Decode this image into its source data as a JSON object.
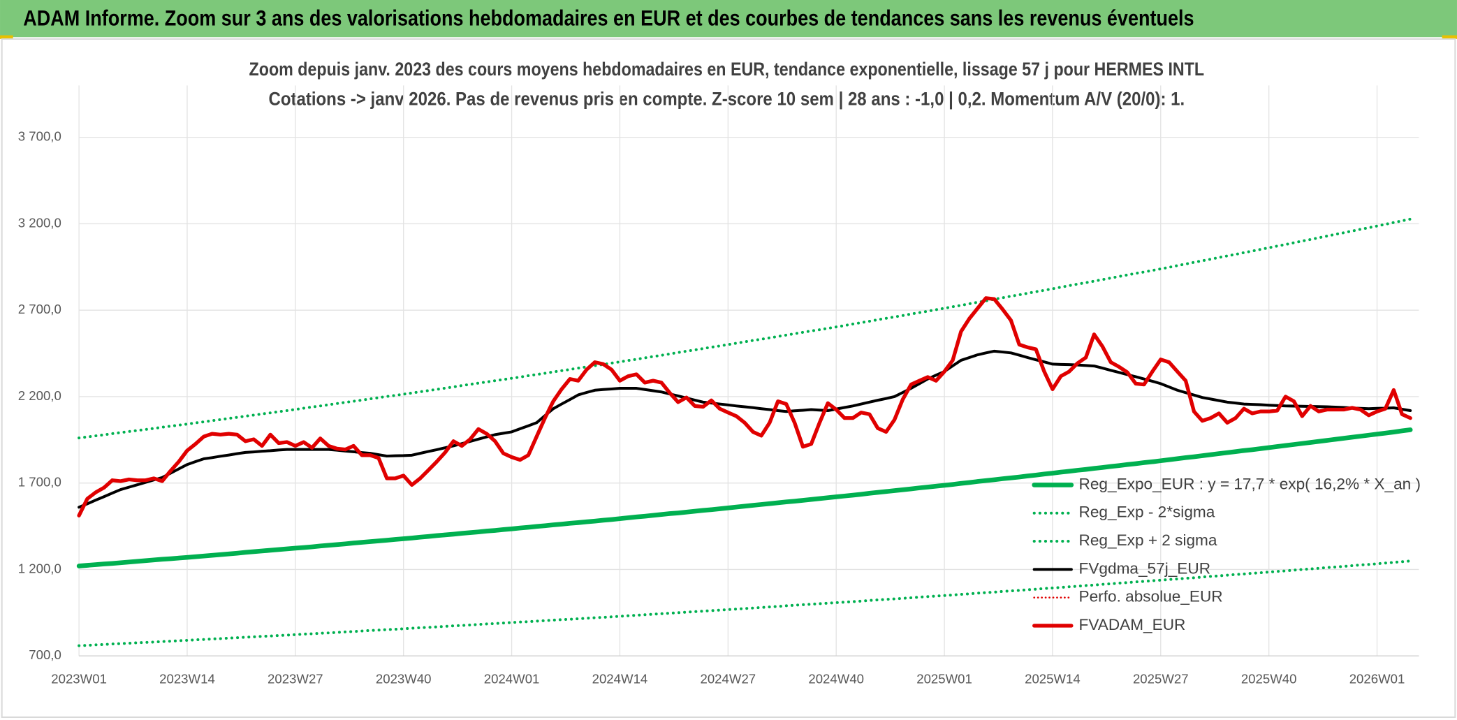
{
  "header": {
    "title": "ADAM Informe. Zoom sur 3 ans des valorisations hebdomadaires en EUR et des courbes de tendances sans les revenus éventuels"
  },
  "chart_data": {
    "type": "line",
    "title": "Zoom depuis janv. 2023 des cours moyens hebdomadaires en EUR, tendance exponentielle, lissage 57 j pour HERMES INTL",
    "subtitle": "Cotations -> janv 2026. Pas de revenus pris en compte. Z-score 10 sem | 28 ans : -1,0 | 0,2. Momentum A/V (20/0): 1.",
    "categories": [
      "2023W01",
      null,
      null,
      null,
      null,
      null,
      null,
      null,
      null,
      null,
      null,
      null,
      null,
      "2023W14",
      null,
      null,
      null,
      null,
      null,
      null,
      null,
      null,
      null,
      null,
      null,
      null,
      "2023W27",
      null,
      null,
      null,
      null,
      null,
      null,
      null,
      null,
      null,
      null,
      null,
      null,
      "2023W40",
      null,
      null,
      null,
      null,
      null,
      null,
      null,
      null,
      null,
      null,
      null,
      null,
      "2024W01",
      null,
      null,
      null,
      null,
      null,
      null,
      null,
      null,
      null,
      null,
      null,
      null,
      "2024W14",
      null,
      null,
      null,
      null,
      null,
      null,
      null,
      null,
      null,
      null,
      null,
      null,
      "2024W27",
      null,
      null,
      null,
      null,
      null,
      null,
      null,
      null,
      null,
      null,
      null,
      null,
      "2024W40",
      null,
      null,
      null,
      null,
      null,
      null,
      null,
      null,
      null,
      null,
      null,
      null,
      "2025W01",
      null,
      null,
      null,
      null,
      null,
      null,
      null,
      null,
      null,
      null,
      null,
      null,
      "2025W14",
      null,
      null,
      null,
      null,
      null,
      null,
      null,
      null,
      null,
      null,
      null,
      null,
      "2025W27",
      null,
      null,
      null,
      null,
      null,
      null,
      null,
      null,
      null,
      null,
      null,
      null,
      "2025W40",
      null,
      null,
      null,
      null,
      null,
      null,
      null,
      null,
      null,
      null,
      null,
      null,
      "2026W01",
      null,
      null,
      null,
      null
    ],
    "ylim": [
      700,
      4000
    ],
    "yticks": [
      {
        "value": 700,
        "label": "700,0"
      },
      {
        "value": 1200,
        "label": "1 200,0"
      },
      {
        "value": 1700,
        "label": "1 700,0"
      },
      {
        "value": 2200,
        "label": "2 200,0"
      },
      {
        "value": 2700,
        "label": "2 700,0"
      },
      {
        "value": 3200,
        "label": "3 200,0"
      },
      {
        "value": 3700,
        "label": "3 700,0"
      }
    ],
    "grid": true,
    "legend": "lower right",
    "series": [
      {
        "name": "Reg_Expo_EUR : y = 17,7 * exp( 16,2% *  X_an )",
        "color": "#00b050",
        "style": "solid",
        "width": 5,
        "values": [
          1220,
          1224,
          1228,
          1232,
          1235,
          1239,
          1243,
          1247,
          1251,
          1255,
          1259,
          1262,
          1266,
          1270,
          1274,
          1278,
          1282,
          1286,
          1290,
          1294,
          1299,
          1303,
          1307,
          1311,
          1315,
          1319,
          1323,
          1327,
          1331,
          1336,
          1340,
          1344,
          1348,
          1353,
          1357,
          1361,
          1365,
          1369,
          1374,
          1378,
          1382,
          1387,
          1391,
          1396,
          1400,
          1404,
          1409,
          1413,
          1417,
          1422,
          1426,
          1431,
          1435,
          1440,
          1444,
          1449,
          1453,
          1458,
          1462,
          1467,
          1471,
          1476,
          1480,
          1485,
          1489,
          1494,
          1499,
          1504,
          1508,
          1513,
          1518,
          1523,
          1527,
          1532,
          1537,
          1542,
          1546,
          1551,
          1556,
          1561,
          1566,
          1571,
          1576,
          1581,
          1586,
          1591,
          1595,
          1600,
          1605,
          1610,
          1615,
          1620,
          1625,
          1630,
          1635,
          1641,
          1646,
          1651,
          1656,
          1661,
          1666,
          1672,
          1677,
          1682,
          1687,
          1692,
          1698,
          1703,
          1709,
          1714,
          1719,
          1725,
          1730,
          1735,
          1741,
          1746,
          1752,
          1757,
          1763,
          1768,
          1774,
          1779,
          1785,
          1790,
          1796,
          1801,
          1807,
          1812,
          1818,
          1823,
          1829,
          1835,
          1841,
          1847,
          1852,
          1858,
          1864,
          1870,
          1876,
          1882,
          1888,
          1893,
          1899,
          1905,
          1911,
          1917,
          1923,
          1929,
          1935,
          1941,
          1947,
          1953,
          1959,
          1965,
          1971,
          1977,
          1983,
          1989,
          1995,
          2002,
          2008
        ]
      },
      {
        "name": "Reg_Exp - 2*sigma",
        "color": "#00b050",
        "style": "dotted",
        "width": 3,
        "values": [
          759,
          761,
          764,
          766,
          769,
          771,
          773,
          776,
          778,
          780,
          783,
          785,
          788,
          790,
          793,
          795,
          798,
          800,
          803,
          805,
          808,
          810,
          813,
          815,
          818,
          820,
          823,
          826,
          828,
          831,
          833,
          836,
          839,
          841,
          844,
          847,
          849,
          852,
          854,
          857,
          860,
          863,
          865,
          868,
          871,
          874,
          876,
          879,
          882,
          885,
          887,
          890,
          893,
          896,
          898,
          901,
          904,
          907,
          910,
          912,
          915,
          918,
          921,
          923,
          926,
          929,
          932,
          935,
          938,
          941,
          944,
          947,
          950,
          953,
          956,
          959,
          962,
          965,
          968,
          971,
          974,
          977,
          980,
          983,
          986,
          990,
          993,
          996,
          999,
          1002,
          1005,
          1008,
          1011,
          1014,
          1017,
          1021,
          1024,
          1027,
          1030,
          1033,
          1036,
          1040,
          1043,
          1046,
          1049,
          1052,
          1056,
          1059,
          1063,
          1066,
          1069,
          1073,
          1076,
          1079,
          1083,
          1086,
          1090,
          1093,
          1096,
          1100,
          1103,
          1107,
          1110,
          1114,
          1117,
          1121,
          1124,
          1128,
          1131,
          1135,
          1138,
          1142,
          1145,
          1149,
          1152,
          1156,
          1160,
          1163,
          1167,
          1171,
          1174,
          1178,
          1181,
          1185,
          1189,
          1192,
          1196,
          1200,
          1203,
          1207,
          1211,
          1214,
          1218,
          1222,
          1226,
          1229,
          1233,
          1237,
          1241,
          1245,
          1249
        ]
      },
      {
        "name": "Reg_Exp + 2 sigma",
        "color": "#00b050",
        "style": "dotted",
        "width": 3,
        "values": [
          1961,
          1967,
          1973,
          1979,
          1986,
          1992,
          1998,
          2004,
          2010,
          2016,
          2023,
          2029,
          2035,
          2041,
          2048,
          2054,
          2061,
          2067,
          2074,
          2080,
          2087,
          2093,
          2100,
          2106,
          2113,
          2119,
          2126,
          2133,
          2140,
          2146,
          2153,
          2160,
          2167,
          2173,
          2180,
          2187,
          2194,
          2201,
          2207,
          2214,
          2221,
          2228,
          2235,
          2242,
          2249,
          2256,
          2264,
          2271,
          2278,
          2285,
          2292,
          2299,
          2306,
          2313,
          2321,
          2328,
          2335,
          2343,
          2350,
          2357,
          2365,
          2372,
          2379,
          2386,
          2394,
          2401,
          2409,
          2416,
          2424,
          2432,
          2439,
          2447,
          2455,
          2463,
          2470,
          2478,
          2486,
          2493,
          2501,
          2509,
          2517,
          2525,
          2532,
          2540,
          2548,
          2556,
          2564,
          2572,
          2580,
          2587,
          2595,
          2603,
          2611,
          2620,
          2628,
          2636,
          2645,
          2653,
          2661,
          2669,
          2678,
          2686,
          2694,
          2703,
          2711,
          2720,
          2728,
          2737,
          2746,
          2754,
          2763,
          2772,
          2781,
          2789,
          2798,
          2807,
          2815,
          2824,
          2833,
          2842,
          2851,
          2859,
          2868,
          2877,
          2886,
          2895,
          2904,
          2913,
          2921,
          2930,
          2939,
          2948,
          2958,
          2967,
          2977,
          2986,
          2995,
          3005,
          3014,
          3023,
          3033,
          3042,
          3052,
          3061,
          3071,
          3080,
          3090,
          3100,
          3109,
          3119,
          3129,
          3139,
          3148,
          3158,
          3168,
          3177,
          3187,
          3197,
          3207,
          3217,
          3227
        ]
      },
      {
        "name": "FVgdma_57j_EUR",
        "color": "#000000",
        "style": "solid",
        "width": 3,
        "values": [
          1560,
          1580,
          1601,
          1621,
          1642,
          1662,
          1676,
          1690,
          1704,
          1718,
          1732,
          1757,
          1782,
          1807,
          1824,
          1840,
          1847,
          1855,
          1862,
          1870,
          1877,
          1880,
          1884,
          1887,
          1891,
          1894,
          1894,
          1894,
          1894,
          1894,
          1894,
          1890,
          1885,
          1881,
          1876,
          1872,
          1864,
          1856,
          1858,
          1859,
          1861,
          1872,
          1883,
          1893,
          1904,
          1915,
          1928,
          1941,
          1954,
          1967,
          1980,
          1988,
          1996,
          2014,
          2031,
          2049,
          2090,
          2130,
          2157,
          2183,
          2210,
          2224,
          2237,
          2241,
          2244,
          2248,
          2248,
          2248,
          2241,
          2234,
          2227,
          2215,
          2204,
          2192,
          2180,
          2168,
          2163,
          2157,
          2152,
          2146,
          2141,
          2136,
          2130,
          2125,
          2119,
          2114,
          2118,
          2121,
          2125,
          2122,
          2119,
          2128,
          2137,
          2146,
          2157,
          2168,
          2179,
          2189,
          2200,
          2224,
          2248,
          2275,
          2302,
          2324,
          2345,
          2378,
          2410,
          2426,
          2442,
          2453,
          2463,
          2458,
          2453,
          2440,
          2426,
          2413,
          2401,
          2388,
          2386,
          2385,
          2383,
          2380,
          2377,
          2365,
          2352,
          2340,
          2327,
          2315,
          2302,
          2289,
          2275,
          2256,
          2237,
          2223,
          2209,
          2195,
          2186,
          2177,
          2168,
          2163,
          2157,
          2155,
          2153,
          2150,
          2148,
          2146,
          2145,
          2144,
          2143,
          2142,
          2141,
          2139,
          2137,
          2134,
          2132,
          2130,
          2132,
          2133,
          2135,
          2127,
          2119
        ]
      },
      {
        "name": "Perfo. absolue_EUR",
        "color": "#e00000",
        "style": "dotted",
        "width": 2
      },
      {
        "name": "FVADAM_EUR",
        "color": "#e00000",
        "style": "solid",
        "width": 4,
        "values": [
          1512,
          1609,
          1646,
          1673,
          1716,
          1711,
          1721,
          1716,
          1716,
          1727,
          1711,
          1770,
          1824,
          1888,
          1926,
          1969,
          1985,
          1980,
          1985,
          1980,
          1942,
          1953,
          1915,
          1980,
          1931,
          1937,
          1915,
          1937,
          1904,
          1958,
          1915,
          1899,
          1894,
          1915,
          1861,
          1861,
          1845,
          1727,
          1727,
          1743,
          1689,
          1727,
          1775,
          1824,
          1877,
          1942,
          1915,
          1953,
          2012,
          1985,
          1942,
          1872,
          1850,
          1834,
          1861,
          1969,
          2076,
          2173,
          2243,
          2302,
          2292,
          2356,
          2399,
          2388,
          2356,
          2292,
          2318,
          2329,
          2281,
          2292,
          2281,
          2221,
          2168,
          2195,
          2146,
          2141,
          2178,
          2130,
          2108,
          2087,
          2049,
          1996,
          1974,
          2049,
          2173,
          2157,
          2049,
          1910,
          1926,
          2049,
          2162,
          2125,
          2076,
          2076,
          2108,
          2098,
          2017,
          1996,
          2066,
          2184,
          2270,
          2292,
          2313,
          2292,
          2345,
          2410,
          2576,
          2651,
          2711,
          2770,
          2764,
          2705,
          2641,
          2501,
          2485,
          2474,
          2345,
          2243,
          2318,
          2345,
          2393,
          2426,
          2560,
          2490,
          2399,
          2372,
          2340,
          2275,
          2270,
          2345,
          2415,
          2399,
          2345,
          2292,
          2114,
          2060,
          2076,
          2103,
          2049,
          2076,
          2130,
          2103,
          2114,
          2114,
          2119,
          2200,
          2173,
          2087,
          2146,
          2114,
          2125,
          2125,
          2125,
          2135,
          2125,
          2092,
          2114,
          2130,
          2238,
          2098,
          2076
        ]
      }
    ]
  }
}
